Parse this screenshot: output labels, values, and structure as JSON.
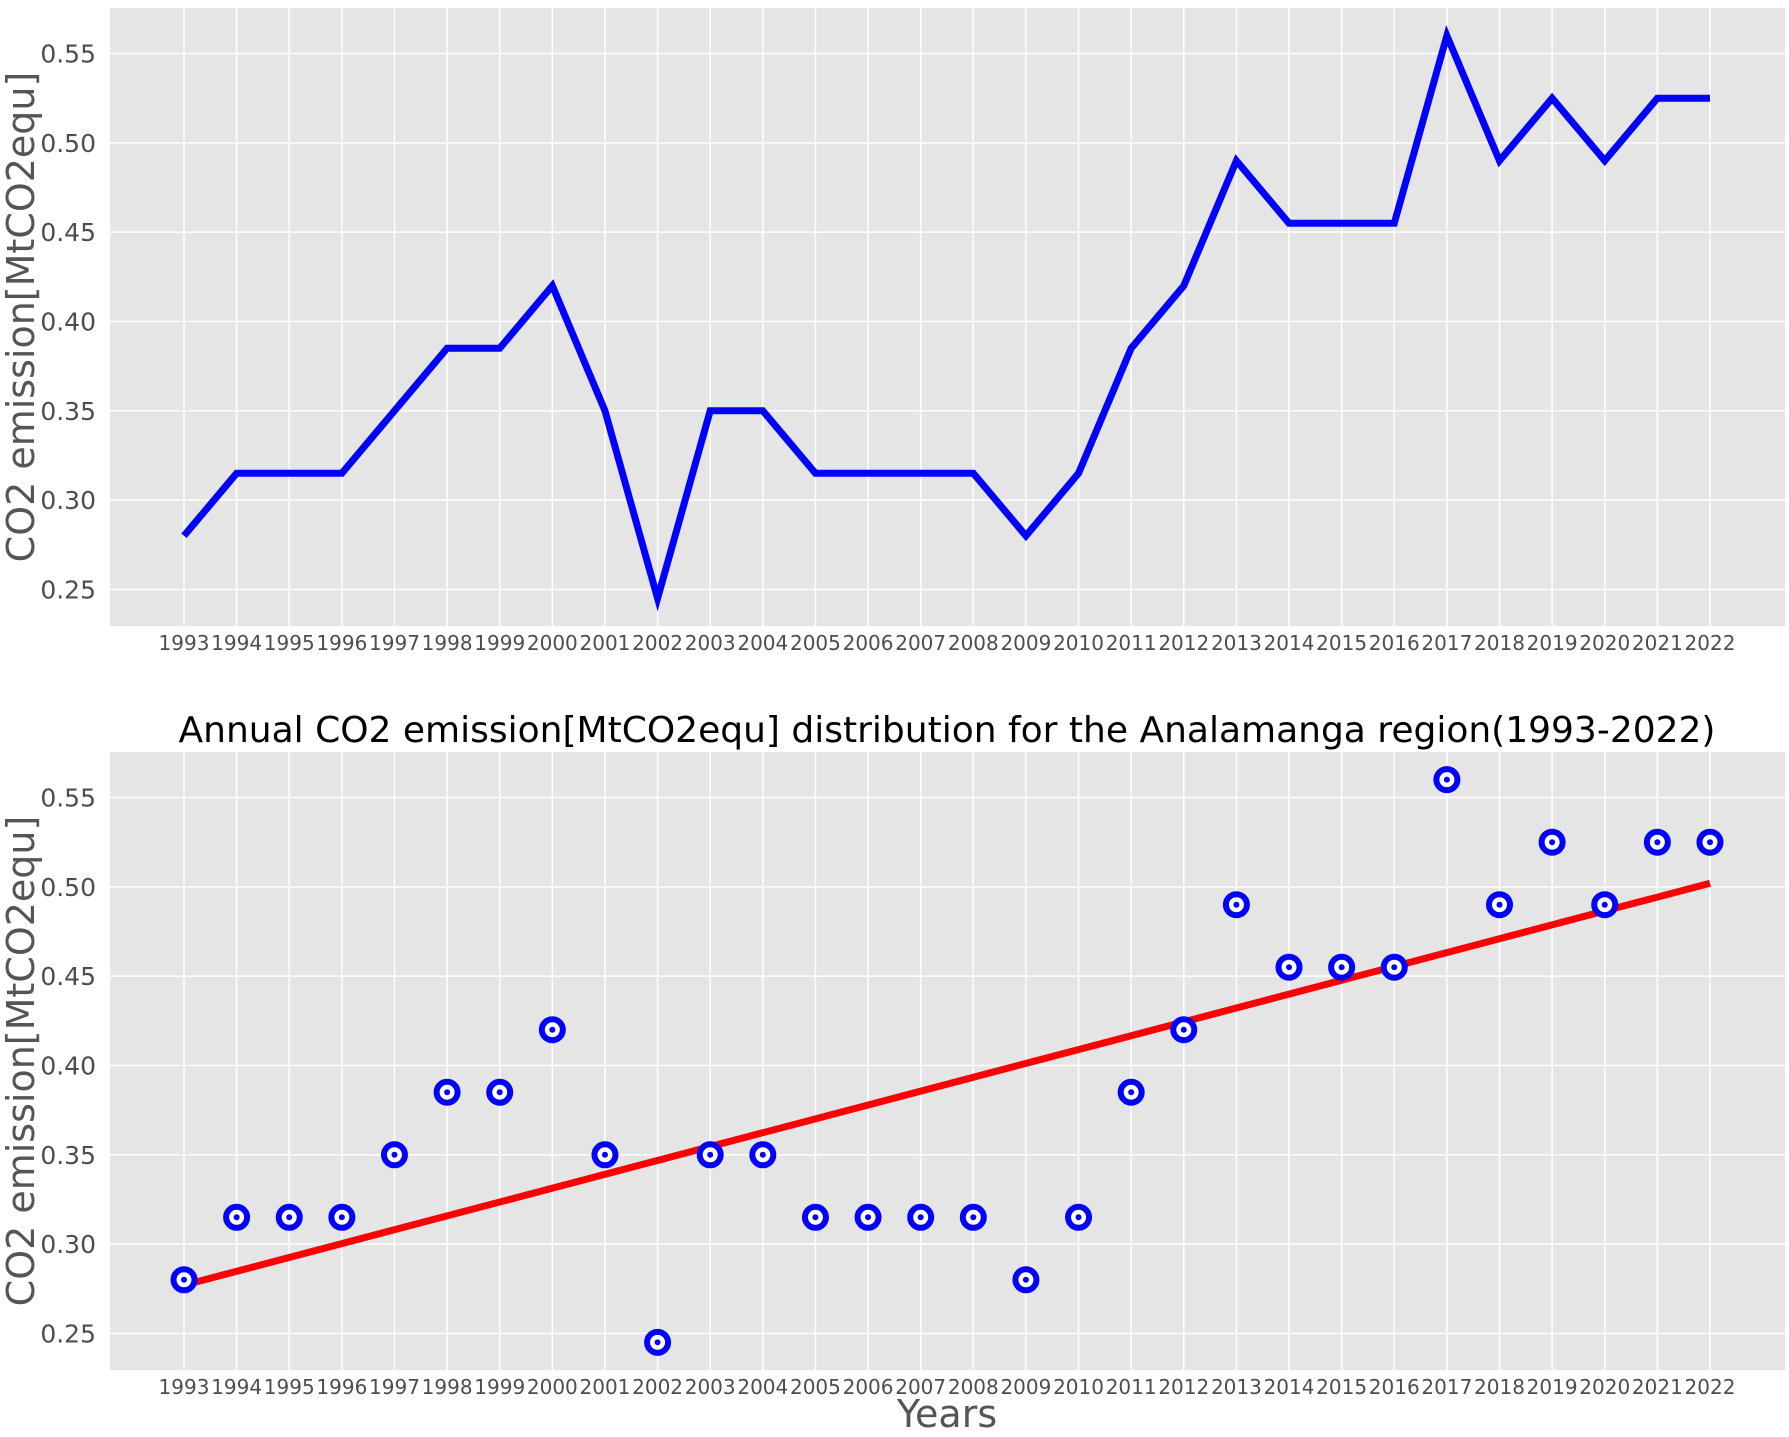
{
  "chart_data": [
    {
      "type": "line",
      "title": "",
      "xlabel": "",
      "ylabel": "CO2 emission[MtCO2equ]",
      "x": [
        "1993",
        "1994",
        "1995",
        "1996",
        "1997",
        "1998",
        "1999",
        "2000",
        "2001",
        "2002",
        "2003",
        "2004",
        "2005",
        "2006",
        "2007",
        "2008",
        "2009",
        "2010",
        "2011",
        "2012",
        "2013",
        "2014",
        "2015",
        "2016",
        "2017",
        "2018",
        "2019",
        "2020",
        "2021",
        "2022"
      ],
      "series": [
        {
          "values": [
            0.28,
            0.315,
            0.315,
            0.315,
            0.35,
            0.385,
            0.385,
            0.42,
            0.35,
            0.245,
            0.35,
            0.35,
            0.315,
            0.315,
            0.315,
            0.315,
            0.28,
            0.315,
            0.385,
            0.42,
            0.49,
            0.455,
            0.455,
            0.455,
            0.56,
            0.49,
            0.525,
            0.49,
            0.525,
            0.525
          ],
          "color": "#0000ff"
        }
      ],
      "yticks": [
        "0.25",
        "0.30",
        "0.35",
        "0.40",
        "0.45",
        "0.50",
        "0.55"
      ],
      "ylim": [
        0.2295,
        0.5755
      ],
      "grid": true,
      "background": "#e5e5e5"
    },
    {
      "type": "scatter",
      "title": "Annual CO2 emission[MtCO2equ] distribution for the Analamanga region(1993-2022)",
      "xlabel": "Years",
      "ylabel": "CO2 emission[MtCO2equ]",
      "x": [
        "1993",
        "1994",
        "1995",
        "1996",
        "1997",
        "1998",
        "1999",
        "2000",
        "2001",
        "2002",
        "2003",
        "2004",
        "2005",
        "2006",
        "2007",
        "2008",
        "2009",
        "2010",
        "2011",
        "2012",
        "2013",
        "2014",
        "2015",
        "2016",
        "2017",
        "2018",
        "2019",
        "2020",
        "2021",
        "2022"
      ],
      "series": [
        {
          "values": [
            0.28,
            0.315,
            0.315,
            0.315,
            0.35,
            0.385,
            0.385,
            0.42,
            0.35,
            0.245,
            0.35,
            0.35,
            0.315,
            0.315,
            0.315,
            0.315,
            0.28,
            0.315,
            0.385,
            0.42,
            0.49,
            0.455,
            0.455,
            0.455,
            0.56,
            0.49,
            0.525,
            0.49,
            0.525,
            0.525
          ],
          "color": "#0000ff",
          "marker": "ring"
        }
      ],
      "trend_line": {
        "start": 0.277,
        "end": 0.502,
        "color": "#ff0000"
      },
      "yticks": [
        "0.25",
        "0.30",
        "0.35",
        "0.40",
        "0.45",
        "0.50",
        "0.55"
      ],
      "ylim": [
        0.2295,
        0.5755
      ],
      "grid": true,
      "background": "#e5e5e5"
    }
  ]
}
